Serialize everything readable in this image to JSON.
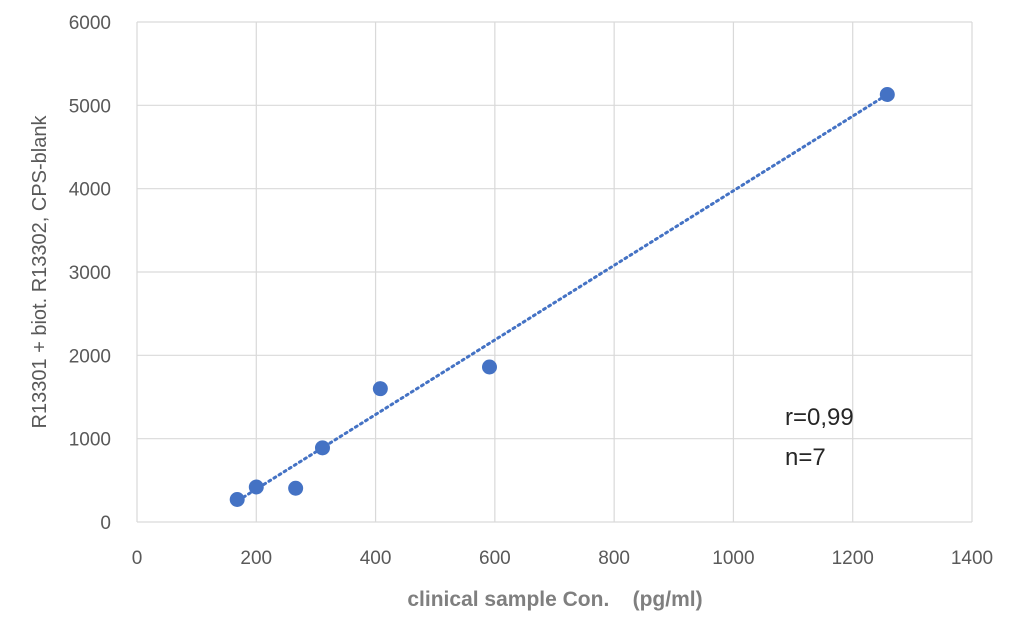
{
  "chart_data": {
    "type": "scatter",
    "title": "",
    "xlabel": "clinical sample Con.    (pg/ml)",
    "ylabel": "R13301 + biot. R13302, CPS-blank",
    "xlim": [
      0,
      1400
    ],
    "ylim": [
      0,
      6000
    ],
    "x_ticks": [
      0,
      200,
      400,
      600,
      800,
      1000,
      1200,
      1400
    ],
    "y_ticks": [
      0,
      1000,
      2000,
      3000,
      4000,
      5000,
      6000
    ],
    "grid": true,
    "marker_color": "#4472C4",
    "trendline": {
      "style": "dotted",
      "from": [
        170,
        260
      ],
      "to": [
        1258,
        5130
      ]
    },
    "series": [
      {
        "points": [
          {
            "x": 168,
            "y": 270
          },
          {
            "x": 200,
            "y": 420
          },
          {
            "x": 266,
            "y": 405
          },
          {
            "x": 311,
            "y": 890
          },
          {
            "x": 408,
            "y": 1600
          },
          {
            "x": 591,
            "y": 1860
          },
          {
            "x": 1258,
            "y": 5130
          }
        ]
      }
    ],
    "annotations": [
      "r=0,99",
      "n=7"
    ]
  }
}
